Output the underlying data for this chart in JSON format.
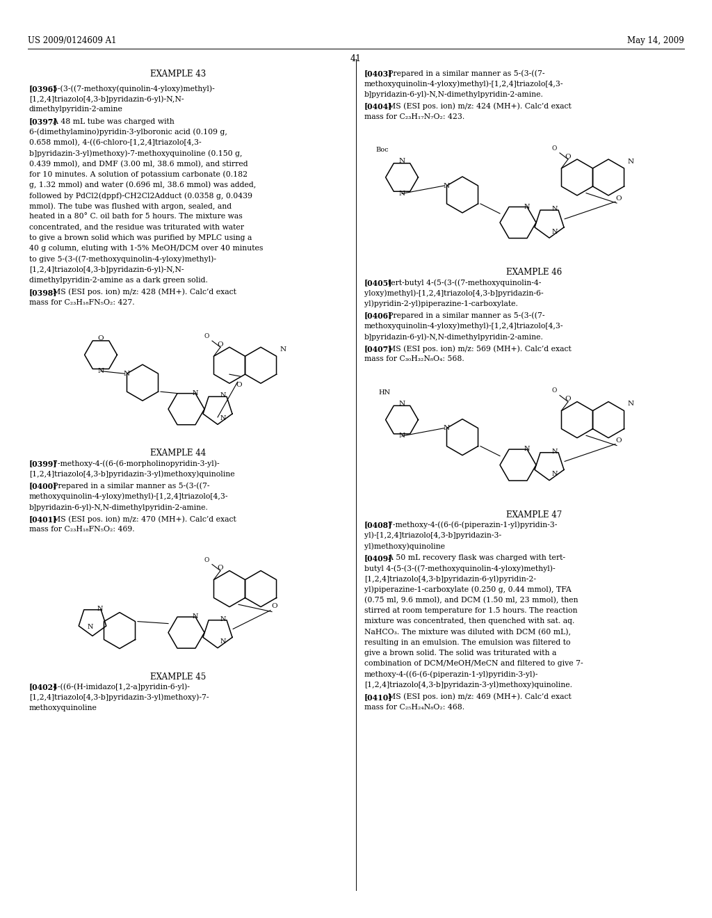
{
  "background_color": "#ffffff",
  "header_left": "US 2009/0124609 A1",
  "header_right": "May 14, 2009",
  "page_number": "41"
}
